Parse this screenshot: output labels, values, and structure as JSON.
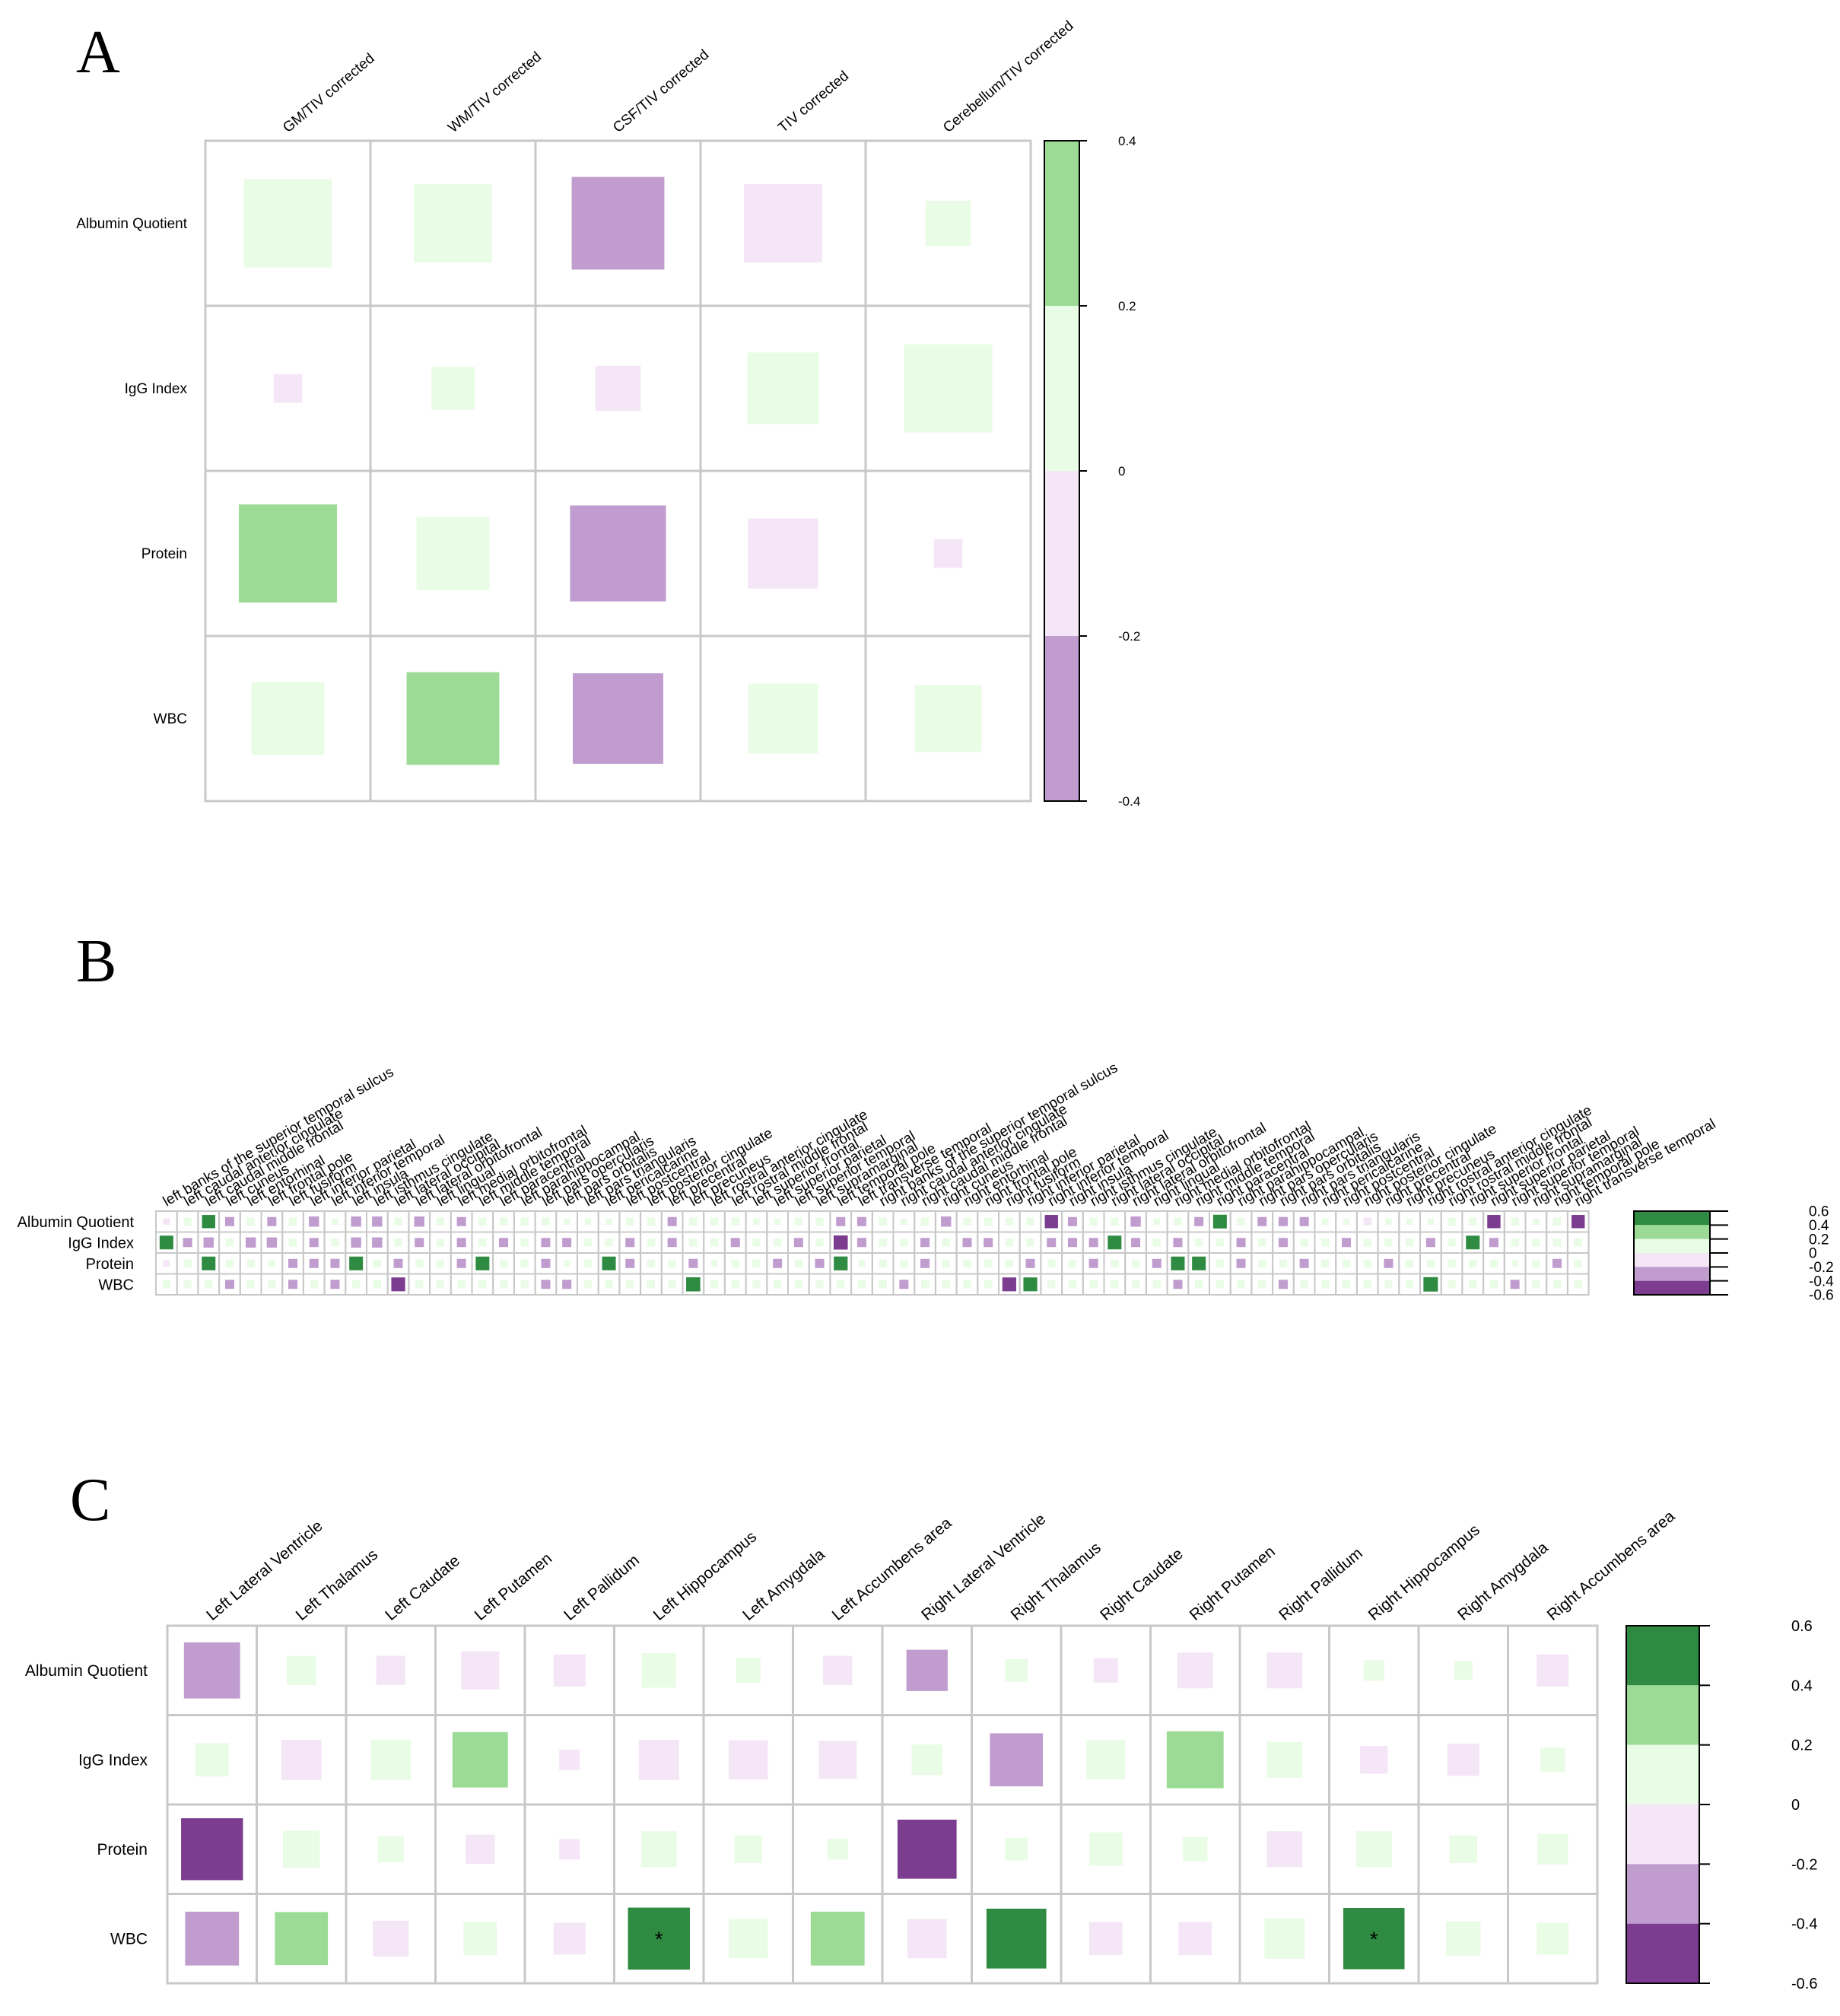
{
  "colors": {
    "green_dark": "#2e8b41",
    "green_mid": "#9bdb95",
    "green_light": "#e9fce5",
    "purple_light": "#f4e6f6",
    "purple_mid": "#c09ccf",
    "purple_dark": "#7c3c8f",
    "grid": "#c8c8c8",
    "axis": "#000000"
  },
  "chart_data": [
    {
      "panel": "A",
      "type": "heatmap",
      "title": "",
      "columns": [
        "GM/TIV corrected",
        "WM/TIV corrected",
        "CSF/TIV corrected",
        "TIV corrected",
        "Cerebellum/TIV corrected"
      ],
      "rows": [
        "Albumin Quotient",
        "IgG Index",
        "Protein",
        "WBC"
      ],
      "values": [
        [
          0.19,
          0.15,
          -0.21,
          -0.15,
          0.05
        ],
        [
          -0.02,
          0.045,
          -0.05,
          0.125,
          0.19
        ],
        [
          0.235,
          0.13,
          -0.225,
          -0.12,
          -0.02
        ],
        [
          0.13,
          0.21,
          -0.2,
          0.12,
          0.11
        ]
      ],
      "significant": [],
      "colorbar": {
        "min": -0.4,
        "max": 0.4,
        "ticks": [
          "0.4",
          "0.2",
          "0",
          "-0.2",
          "-0.4"
        ],
        "bands": [
          "green_mid",
          "green_light",
          "purple_light",
          "purple_mid"
        ]
      },
      "scale_max": 0.4
    },
    {
      "panel": "B",
      "type": "heatmap",
      "title": "",
      "columns": [
        "left banks of the superior temporal sulcus",
        "left caudal anterior cingulate",
        "left caudal middle frontal",
        "left cuneus",
        "left entorhinal",
        "left frontal pole",
        "left fusiform",
        "left inferior parietal",
        "left inferior temporal",
        "left insula",
        "left isthmus cingulate",
        "left lateral occipital",
        "left lateral orbitofrontal",
        "left lingual",
        "left medial orbitofrontal",
        "left middle temporal",
        "left paracentral",
        "left parahippocampal",
        "left pars opercularis",
        "left pars orbitalis",
        "left pars triangularis",
        "left pericalcarine",
        "left postcentral",
        "left posterior cingulate",
        "left precentral",
        "left precuneus",
        "left rostral anterior cingulate",
        "left rostral middle frontal",
        "left superior frontal",
        "left superior parietal",
        "left superior temporal",
        "left supramarginal",
        "left temporal pole",
        "left transverse temporal",
        "right banks of the superior temporal sulcus",
        "right caudal anterior cingulate",
        "right caudal middle frontal",
        "right cuneus",
        "right entorhinal",
        "right frontal pole",
        "right fusiform",
        "right inferior parietal",
        "right inferior temporal",
        "right insula",
        "right isthmus cingulate",
        "right lateral occipital",
        "right lateral orbitofrontal",
        "right lingual",
        "right medial orbitofrontal",
        "right middle temporal",
        "right paracentral",
        "right parahippocampal",
        "right pars opercularis",
        "right pars orbitalis",
        "right pars triangularis",
        "right pericalcarine",
        "right postcentral",
        "right posterior cingulate",
        "right precentral",
        "right precuneus",
        "right rostral anterior cingulate",
        "right rostral middle frontal",
        "right superior frontal",
        "right superior parietal",
        "right superior temporal",
        "right supramarginal",
        "right temporal pole",
        "right transverse temporal"
      ],
      "rows": [
        "Albumin Quotient",
        "IgG Index",
        "Protein",
        "WBC"
      ],
      "values": [
        [
          -0.1,
          0.15,
          0.42,
          -0.2,
          0.15,
          -0.2,
          0.15,
          -0.25,
          0.1,
          -0.25,
          -0.25,
          0.15,
          -0.25,
          0.15,
          -0.2,
          0.15,
          0.15,
          0.15,
          0.15,
          0.1,
          0.1,
          0.1,
          0.15,
          0.15,
          -0.2,
          0.15,
          0.15,
          0.15,
          0.1,
          0.1,
          0.15,
          0.15,
          -0.2,
          -0.2,
          0.15,
          0.1,
          0.15,
          -0.25,
          0.15,
          0.15,
          0.15,
          0.15,
          -0.42,
          -0.2,
          0.15,
          0.15,
          -0.25,
          0.1,
          0.15,
          -0.2,
          0.45,
          0.15,
          -0.2,
          -0.2,
          -0.2,
          0.1,
          0.1,
          -0.15,
          0.1,
          0.1,
          0.1,
          0.15,
          0.15,
          -0.42,
          0.15,
          0.1,
          0.15,
          -0.42
        ],
        [
          0.45,
          -0.2,
          -0.25,
          0.15,
          -0.25,
          -0.25,
          0.15,
          -0.2,
          0.15,
          -0.25,
          -0.25,
          0.15,
          -0.2,
          0.15,
          -0.2,
          0.15,
          -0.2,
          0.15,
          -0.2,
          -0.2,
          0.15,
          0.15,
          -0.2,
          0.15,
          -0.2,
          0.15,
          0.15,
          -0.2,
          0.15,
          0.15,
          -0.2,
          0.15,
          -0.48,
          -0.2,
          0.15,
          0.15,
          -0.2,
          0.15,
          -0.2,
          -0.2,
          0.15,
          0.15,
          -0.2,
          -0.2,
          -0.2,
          0.45,
          -0.2,
          0.15,
          -0.2,
          0.15,
          0.15,
          -0.2,
          0.15,
          -0.2,
          0.15,
          0.15,
          -0.2,
          0.15,
          0.15,
          0.15,
          -0.2,
          0.15,
          0.45,
          -0.2,
          0.15,
          0.15,
          0.15,
          0.15
        ],
        [
          -0.1,
          0.15,
          0.45,
          0.15,
          0.15,
          0.1,
          -0.2,
          -0.2,
          -0.2,
          0.45,
          0.15,
          -0.2,
          0.15,
          0.15,
          -0.2,
          0.45,
          0.15,
          0.15,
          -0.2,
          0.1,
          0.15,
          0.45,
          -0.2,
          0.15,
          0.15,
          -0.2,
          0.1,
          0.15,
          0.15,
          -0.2,
          0.15,
          -0.2,
          0.46,
          0.1,
          0.15,
          0.15,
          -0.2,
          0.15,
          0.15,
          0.15,
          0.15,
          -0.2,
          0.15,
          0.15,
          -0.2,
          0.15,
          0.15,
          -0.2,
          0.45,
          0.45,
          0.15,
          -0.2,
          0.15,
          0.15,
          -0.2,
          0.15,
          0.15,
          0.15,
          -0.2,
          0.15,
          0.15,
          0.15,
          0.15,
          0.15,
          0.1,
          0.15,
          -0.2,
          0.15
        ],
        [
          0.15,
          0.15,
          0.15,
          -0.2,
          0.15,
          0.15,
          -0.2,
          0.15,
          -0.2,
          0.15,
          0.15,
          -0.46,
          0.15,
          0.15,
          0.15,
          0.15,
          0.15,
          0.15,
          -0.2,
          -0.2,
          0.15,
          0.15,
          0.15,
          0.15,
          0.15,
          0.48,
          0.15,
          0.15,
          0.15,
          0.15,
          0.15,
          0.15,
          0.15,
          0.15,
          0.15,
          -0.2,
          0.15,
          0.15,
          0.15,
          0.15,
          -0.46,
          0.46,
          0.15,
          0.15,
          0.15,
          0.15,
          0.15,
          0.15,
          -0.2,
          0.15,
          0.15,
          0.15,
          0.15,
          -0.2,
          0.15,
          0.15,
          0.15,
          0.15,
          0.15,
          0.15,
          0.5,
          0.15,
          0.15,
          0.15,
          -0.2,
          0.15,
          0.15,
          0.15
        ]
      ],
      "significant": [],
      "colorbar": {
        "min": -0.6,
        "max": 0.6,
        "ticks": [
          "0.6",
          "0.4",
          "0.2",
          "0",
          "-0.2",
          "-0.4",
          "-0.6"
        ],
        "bands": [
          "green_dark",
          "green_mid",
          "green_light",
          "purple_light",
          "purple_mid",
          "purple_dark"
        ]
      },
      "scale_max": 0.6
    },
    {
      "panel": "C",
      "type": "heatmap",
      "title": "",
      "columns": [
        "Left Lateral Ventricle",
        "Left Thalamus",
        "Left Caudate",
        "Left Putamen",
        "Left Pallidum",
        "Left Hippocampus",
        "Left Amygdala",
        "Left Accumbens area",
        "Right Lateral Ventricle",
        "Right Thalamus",
        "Right Caudate",
        "Right Putamen",
        "Right Pallidum",
        "Right Hippocampus",
        "Right Amygdala",
        "Right Accumbens area"
      ],
      "rows": [
        "Albumin Quotient",
        "IgG Index",
        "Protein",
        "WBC"
      ],
      "values": [
        [
          -0.37,
          0.1,
          -0.1,
          -0.17,
          -0.12,
          0.14,
          0.07,
          -0.1,
          -0.2,
          0.06,
          -0.07,
          -0.15,
          -0.15,
          0.05,
          0.04,
          -0.12
        ],
        [
          0.13,
          -0.19,
          0.19,
          0.36,
          -0.05,
          -0.19,
          -0.18,
          -0.17,
          0.11,
          -0.33,
          0.18,
          0.38,
          0.15,
          -0.09,
          -0.12,
          0.07
        ],
        [
          -0.45,
          0.16,
          0.08,
          -0.1,
          -0.05,
          0.15,
          0.09,
          0.05,
          -0.41,
          0.06,
          0.13,
          0.07,
          -0.15,
          0.15,
          0.09,
          0.11
        ],
        [
          -0.34,
          0.33,
          -0.15,
          0.13,
          -0.12,
          0.45,
          0.18,
          0.34,
          -0.18,
          0.42,
          -0.13,
          -0.13,
          0.19,
          0.44,
          0.14,
          0.12
        ]
      ],
      "significant": [
        [
          3,
          5
        ],
        [
          3,
          13
        ]
      ],
      "significance_mark": "*",
      "colorbar": {
        "min": -0.6,
        "max": 0.6,
        "ticks": [
          "0.6",
          "0.4",
          "0.2",
          "0",
          "-0.2",
          "-0.4",
          "-0.6"
        ],
        "bands": [
          "green_dark",
          "green_mid",
          "green_light",
          "purple_light",
          "purple_mid",
          "purple_dark"
        ]
      },
      "scale_max": 0.6
    }
  ]
}
